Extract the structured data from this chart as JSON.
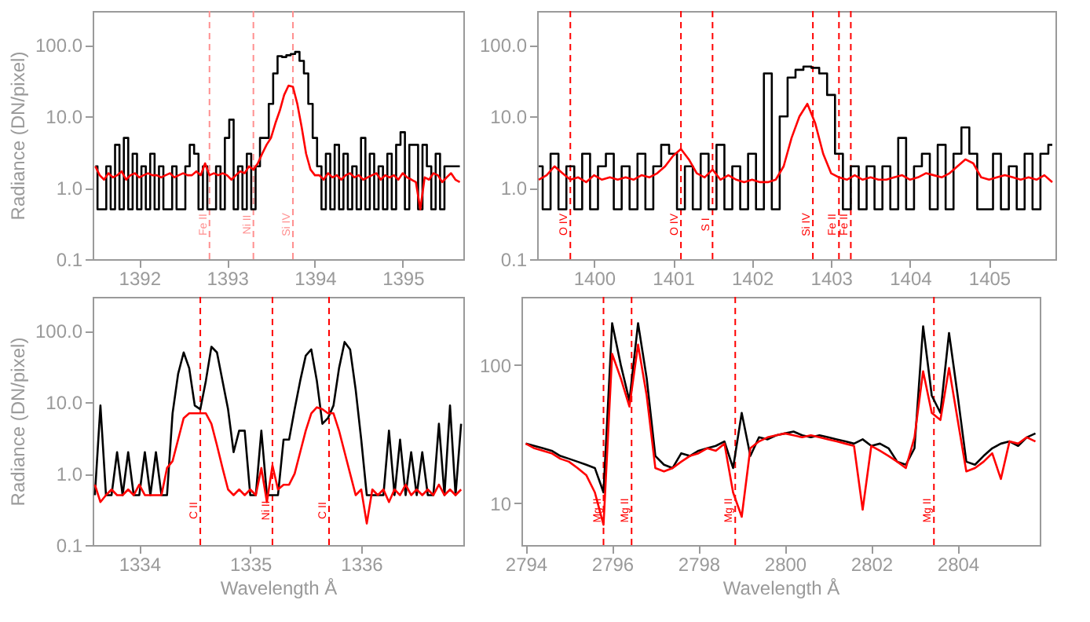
{
  "chart_data": [
    {
      "type": "line",
      "ylabel": "Radiance (DN/pixel)",
      "log": true,
      "grid": false,
      "xlim": [
        1391.47,
        1395.69
      ],
      "xticks": [
        1392,
        1393,
        1394,
        1395
      ],
      "ylim": [
        0.1,
        300
      ],
      "yticks": [
        {
          "value": 0.1,
          "label": "0.1"
        },
        {
          "value": 1,
          "label": "1.0"
        },
        {
          "value": 10,
          "label": "10.0"
        },
        {
          "value": 100,
          "label": "100.0"
        }
      ],
      "x": [
        1391.5,
        1391.55,
        1391.6,
        1391.65,
        1391.7,
        1391.75,
        1391.8,
        1391.85,
        1391.9,
        1391.95,
        1392.0,
        1392.05,
        1392.1,
        1392.15,
        1392.2,
        1392.25,
        1392.3,
        1392.35,
        1392.4,
        1392.45,
        1392.5,
        1392.55,
        1392.6,
        1392.65,
        1392.7,
        1392.75,
        1392.8,
        1392.85,
        1392.9,
        1392.95,
        1393.0,
        1393.05,
        1393.1,
        1393.15,
        1393.2,
        1393.25,
        1393.3,
        1393.35,
        1393.4,
        1393.45,
        1393.5,
        1393.55,
        1393.6,
        1393.65,
        1393.7,
        1393.75,
        1393.8,
        1393.85,
        1393.9,
        1393.95,
        1394.0,
        1394.05,
        1394.1,
        1394.15,
        1394.2,
        1394.25,
        1394.3,
        1394.35,
        1394.4,
        1394.45,
        1394.5,
        1394.55,
        1394.6,
        1394.65,
        1394.7,
        1394.75,
        1394.8,
        1394.85,
        1394.9,
        1394.95,
        1395.0,
        1395.05,
        1395.1,
        1395.15,
        1395.2,
        1395.25,
        1395.3,
        1395.35,
        1395.4,
        1395.45,
        1395.5,
        1395.55,
        1395.6,
        1395.65
      ],
      "series": [
        {
          "type": "step",
          "color": "#000000",
          "values": [
            2,
            0.5,
            0.5,
            2,
            0.5,
            4,
            0.5,
            5,
            0.5,
            3,
            0.5,
            2,
            0.5,
            3,
            0.5,
            2,
            0.5,
            0.5,
            2,
            0.5,
            0.5,
            2,
            4,
            3,
            0.5,
            2,
            0.5,
            0.5,
            2,
            0.5,
            5,
            9,
            0.5,
            2,
            0.5,
            3,
            0.5,
            2,
            5,
            5,
            15,
            40,
            70,
            68,
            72,
            75,
            80,
            60,
            40,
            15,
            5,
            2,
            0.5,
            3,
            0.5,
            4,
            0.5,
            3,
            0.5,
            2,
            0.5,
            5,
            0.5,
            3,
            0.5,
            2,
            0.5,
            3,
            0.5,
            4,
            6,
            0.5,
            4,
            4,
            0.5,
            4,
            2,
            0.5,
            3,
            0.5,
            2,
            2,
            2,
            2
          ]
        },
        {
          "color": "#ff0000",
          "values": [
            2,
            1.5,
            1.3,
            1.6,
            1.4,
            1.5,
            1.7,
            1.3,
            1.5,
            1.6,
            1.4,
            1.5,
            1.6,
            1.5,
            1.5,
            1.4,
            1.5,
            1.6,
            1.4,
            1.5,
            1.6,
            1.5,
            1.5,
            1.7,
            1.5,
            2.2,
            1.5,
            1.6,
            1.5,
            1.6,
            1.5,
            1.3,
            1.5,
            1.7,
            1.6,
            2.0,
            1.8,
            2.2,
            3,
            4,
            5,
            8,
            12,
            20,
            27,
            26,
            15,
            7,
            3,
            1.8,
            1.5,
            1.5,
            1.3,
            1.6,
            1.4,
            1.5,
            1.3,
            1.5,
            1.6,
            1.4,
            1.5,
            1.3,
            1.4,
            1.5,
            1.6,
            1.3,
            1.5,
            1.4,
            1.5,
            1.3,
            1.6,
            1.4,
            1.3,
            1.2,
            0.5,
            1.4,
            1.3,
            1.6,
            1.5,
            1.2,
            1.4,
            1.6,
            1.3,
            1.2
          ]
        }
      ],
      "ref_lines": [
        {
          "axis": "x",
          "value": 1392.8,
          "label": "Fe II",
          "color": "#ff9090",
          "line_style": "dashed"
        },
        {
          "axis": "x",
          "value": 1393.3,
          "label": "Ni II",
          "color": "#ff9090",
          "line_style": "dashed"
        },
        {
          "axis": "x",
          "value": 1393.75,
          "label": "Si IV",
          "color": "#ff9090",
          "line_style": "dashed"
        }
      ]
    },
    {
      "type": "line",
      "log": true,
      "grid": false,
      "xlim": [
        1399.28,
        1405.84
      ],
      "xticks": [
        1400,
        1401,
        1402,
        1403,
        1404,
        1405
      ],
      "ylim": [
        0.1,
        300
      ],
      "yticks": [
        {
          "value": 0.1,
          "label": "0.1"
        },
        {
          "value": 1,
          "label": "1.0"
        },
        {
          "value": 10,
          "label": "10.0"
        },
        {
          "value": 100,
          "label": "100.0"
        }
      ],
      "x": [
        1399.3,
        1399.4,
        1399.5,
        1399.6,
        1399.7,
        1399.8,
        1399.9,
        1400.0,
        1400.1,
        1400.2,
        1400.3,
        1400.4,
        1400.5,
        1400.6,
        1400.7,
        1400.8,
        1400.9,
        1401.0,
        1401.1,
        1401.2,
        1401.3,
        1401.4,
        1401.5,
        1401.6,
        1401.7,
        1401.8,
        1401.9,
        1402.0,
        1402.1,
        1402.2,
        1402.3,
        1402.4,
        1402.5,
        1402.6,
        1402.7,
        1402.8,
        1402.9,
        1403.0,
        1403.1,
        1403.2,
        1403.3,
        1403.4,
        1403.5,
        1403.6,
        1403.7,
        1403.8,
        1403.9,
        1404.0,
        1404.1,
        1404.2,
        1404.3,
        1404.4,
        1404.5,
        1404.6,
        1404.7,
        1404.8,
        1404.9,
        1405.0,
        1405.1,
        1405.2,
        1405.3,
        1405.4,
        1405.5,
        1405.6,
        1405.7,
        1405.8
      ],
      "series": [
        {
          "type": "step",
          "color": "#000000",
          "values": [
            2,
            0.5,
            3,
            0.5,
            2,
            0.5,
            3,
            0.5,
            2,
            3,
            0.5,
            2,
            0.5,
            3,
            0.5,
            2,
            4,
            3,
            0.5,
            2,
            0.5,
            3,
            0.5,
            4,
            0.5,
            2,
            0.5,
            3,
            0.5,
            40,
            0.5,
            10,
            35,
            45,
            50,
            48,
            40,
            20,
            3,
            0.5,
            2,
            0.5,
            2,
            0.5,
            2,
            0.5,
            5,
            0.5,
            2,
            3,
            0.5,
            4,
            0.5,
            3,
            7,
            3,
            0.5,
            0.5,
            3,
            0.5,
            2,
            0.5,
            3,
            0.5,
            3,
            4
          ]
        },
        {
          "color": "#ff0000",
          "values": [
            1.3,
            1.5,
            2.0,
            1.6,
            1.3,
            1.4,
            1.2,
            1.5,
            1.3,
            1.4,
            1.3,
            1.4,
            1.3,
            1.5,
            1.4,
            1.6,
            2,
            2.8,
            3.5,
            2.5,
            1.6,
            1.4,
            1.8,
            1.3,
            1.5,
            1.3,
            1.2,
            1.3,
            1.2,
            1.2,
            1.3,
            2,
            5,
            10,
            15,
            8,
            3,
            1.6,
            1.4,
            1.3,
            1.5,
            1.3,
            1.4,
            1.3,
            1.3,
            1.4,
            1.5,
            1.3,
            1.4,
            1.6,
            1.5,
            1.4,
            1.6,
            2.0,
            2.5,
            2.2,
            1.4,
            1.3,
            1.4,
            1.5,
            1.4,
            1.3,
            1.4,
            1.3,
            1.5,
            1.2
          ]
        }
      ],
      "ref_lines": [
        {
          "axis": "x",
          "value": 1399.7,
          "label": "O IV",
          "color": "#ff0000",
          "line_style": "dashed"
        },
        {
          "axis": "x",
          "value": 1401.1,
          "label": "O IV",
          "color": "#ff0000",
          "line_style": "dashed"
        },
        {
          "axis": "x",
          "value": 1401.5,
          "label": "S I",
          "color": "#ff0000",
          "line_style": "dashed"
        },
        {
          "axis": "x",
          "value": 1402.77,
          "label": "Si IV",
          "color": "#ff0000",
          "line_style": "dashed"
        },
        {
          "axis": "x",
          "value": 1403.1,
          "label": "Fe II",
          "color": "#ff0000",
          "line_style": "dashed"
        },
        {
          "axis": "x",
          "value": 1403.25,
          "label": "Fe II",
          "color": "#ff0000",
          "line_style": "dashed"
        }
      ]
    },
    {
      "type": "line",
      "xlabel": "Wavelength Å",
      "ylabel": "Radiance (DN/pixel)",
      "log": true,
      "grid": false,
      "xlim": [
        1333.58,
        1336.92
      ],
      "xticks": [
        1334,
        1335,
        1336
      ],
      "ylim": [
        0.1,
        300
      ],
      "yticks": [
        {
          "value": 0.1,
          "label": "0.1"
        },
        {
          "value": 1,
          "label": "1.0"
        },
        {
          "value": 10,
          "label": "10.0"
        },
        {
          "value": 100,
          "label": "100.0"
        }
      ],
      "x": [
        1333.6,
        1333.65,
        1333.7,
        1333.75,
        1333.8,
        1333.85,
        1333.9,
        1333.95,
        1334.0,
        1334.05,
        1334.1,
        1334.15,
        1334.2,
        1334.25,
        1334.3,
        1334.35,
        1334.4,
        1334.45,
        1334.5,
        1334.55,
        1334.6,
        1334.65,
        1334.7,
        1334.75,
        1334.8,
        1334.85,
        1334.9,
        1334.95,
        1335.0,
        1335.05,
        1335.1,
        1335.15,
        1335.2,
        1335.25,
        1335.3,
        1335.35,
        1335.4,
        1335.45,
        1335.5,
        1335.55,
        1335.6,
        1335.65,
        1335.7,
        1335.75,
        1335.8,
        1335.85,
        1335.9,
        1335.95,
        1336.0,
        1336.05,
        1336.1,
        1336.15,
        1336.2,
        1336.25,
        1336.3,
        1336.35,
        1336.4,
        1336.45,
        1336.5,
        1336.55,
        1336.6,
        1336.65,
        1336.7,
        1336.75,
        1336.8,
        1336.85,
        1336.9
      ],
      "series": [
        {
          "color": "#000000",
          "values": [
            0.5,
            9,
            0.5,
            0.5,
            2,
            0.5,
            2,
            0.5,
            0.5,
            2,
            0.5,
            2,
            0.5,
            0.5,
            7,
            25,
            50,
            30,
            9,
            8,
            20,
            60,
            50,
            20,
            8,
            2,
            4,
            4,
            0.5,
            0.5,
            4,
            0.5,
            0.5,
            0.5,
            3,
            3,
            8,
            20,
            45,
            55,
            20,
            5,
            6,
            9,
            30,
            70,
            55,
            15,
            3,
            0.5,
            0.5,
            0.5,
            0.5,
            4,
            0.5,
            3,
            0.5,
            2,
            0.5,
            2,
            0.5,
            0.5,
            5,
            0.5,
            9,
            0.5,
            5
          ]
        },
        {
          "color": "#ff0000",
          "values": [
            0.7,
            0.4,
            0.5,
            0.6,
            0.5,
            0.5,
            0.6,
            0.5,
            0.7,
            0.5,
            0.5,
            0.5,
            0.5,
            1.2,
            1.5,
            3,
            6,
            7,
            7,
            7,
            7,
            5,
            2.5,
            1.2,
            0.6,
            0.5,
            0.6,
            0.5,
            0.6,
            0.5,
            1.2,
            0.4,
            1.3,
            0.6,
            0.7,
            0.7,
            1,
            2,
            4,
            7,
            8.5,
            8,
            7,
            7,
            4,
            2,
            1,
            0.5,
            0.6,
            0.2,
            0.6,
            0.5,
            0.6,
            0.4,
            0.6,
            0.5,
            0.7,
            0.5,
            0.6,
            0.5,
            0.6,
            0.5,
            0.7,
            0.5,
            0.6,
            0.5,
            0.6
          ]
        }
      ],
      "ref_lines": [
        {
          "axis": "x",
          "value": 1334.55,
          "label": "C II",
          "color": "#ff0000",
          "line_style": "dashed"
        },
        {
          "axis": "x",
          "value": 1335.2,
          "label": "Ni II",
          "color": "#ff0000",
          "line_style": "dashed"
        },
        {
          "axis": "x",
          "value": 1335.71,
          "label": "C II",
          "color": "#ff0000",
          "line_style": "dashed"
        }
      ]
    },
    {
      "type": "line",
      "xlabel": "Wavelength Å",
      "log": true,
      "grid": false,
      "xlim": [
        2793.9,
        2805.9
      ],
      "xticks": [
        2794,
        2796,
        2798,
        2800,
        2802,
        2804
      ],
      "ylim": [
        5,
        310
      ],
      "yticks": [
        10,
        100
      ],
      "x": [
        2794.0,
        2794.2,
        2794.4,
        2794.6,
        2794.8,
        2795.0,
        2795.2,
        2795.4,
        2795.6,
        2795.8,
        2796.0,
        2796.2,
        2796.4,
        2796.6,
        2796.8,
        2797.0,
        2797.2,
        2797.4,
        2797.6,
        2797.8,
        2798.0,
        2798.2,
        2798.4,
        2798.6,
        2798.8,
        2799.0,
        2799.2,
        2799.4,
        2799.6,
        2799.8,
        2800.0,
        2800.2,
        2800.4,
        2800.6,
        2800.8,
        2801.0,
        2801.2,
        2801.4,
        2801.6,
        2801.8,
        2802.0,
        2802.2,
        2802.4,
        2802.6,
        2802.8,
        2803.0,
        2803.2,
        2803.4,
        2803.6,
        2803.8,
        2804.0,
        2804.2,
        2804.4,
        2804.6,
        2804.8,
        2805.0,
        2805.2,
        2805.4,
        2805.6,
        2805.8
      ],
      "series": [
        {
          "color": "#000000",
          "values": [
            27,
            26,
            25,
            24,
            22,
            21,
            20,
            19,
            18,
            12,
            200,
            100,
            55,
            200,
            80,
            22,
            19,
            18,
            23,
            22,
            24,
            25,
            26,
            28,
            18,
            45,
            22,
            30,
            29,
            31,
            32,
            33,
            31,
            30,
            31,
            30,
            29,
            28,
            27,
            29,
            26,
            27,
            25,
            20,
            19,
            25,
            190,
            60,
            45,
            170,
            60,
            20,
            19,
            22,
            25,
            27,
            28,
            26,
            30,
            32
          ]
        },
        {
          "color": "#ff0000",
          "values": [
            27,
            25,
            24,
            23,
            21,
            20,
            18,
            16,
            12,
            7,
            120,
            80,
            50,
            140,
            60,
            18,
            17,
            18,
            20,
            22,
            23,
            25,
            24,
            27,
            12,
            8,
            25,
            28,
            30,
            31,
            32,
            31,
            30,
            31,
            30,
            29,
            28,
            27,
            26,
            9,
            26,
            24,
            22,
            20,
            18,
            30,
            90,
            45,
            40,
            95,
            40,
            17,
            18,
            20,
            23,
            15,
            28,
            27,
            30,
            28
          ]
        }
      ],
      "ref_lines": [
        {
          "axis": "x",
          "value": 2795.8,
          "label": "Mg II",
          "color": "#ff0000",
          "line_style": "dashed"
        },
        {
          "axis": "x",
          "value": 2796.45,
          "label": "Mg II",
          "color": "#ff0000",
          "line_style": "dashed"
        },
        {
          "axis": "x",
          "value": 2798.85,
          "label": "Mg II",
          "color": "#ff0000",
          "line_style": "dashed"
        },
        {
          "axis": "x",
          "value": 2803.45,
          "label": "Mg II",
          "color": "#ff0000",
          "line_style": "dashed"
        }
      ]
    }
  ]
}
